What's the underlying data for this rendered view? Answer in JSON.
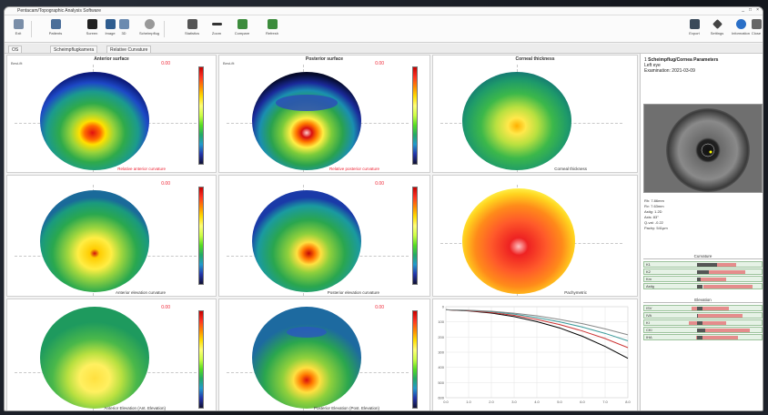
{
  "window": {
    "title": "Pentacam/Topographic Analysis Software",
    "controls": [
      "_",
      "□",
      "×"
    ]
  },
  "toolbar": {
    "items": [
      {
        "label": "Exit",
        "icon": "exit-icon",
        "color": "#7a8ea8"
      },
      {
        "label": "Patients",
        "icon": "patients-icon",
        "color": "#4a6e99"
      },
      {
        "label": "Screen",
        "icon": "monitor-icon",
        "color": "#222222"
      },
      {
        "label": "Image",
        "icon": "image-icon",
        "color": "#2f5d8f"
      },
      {
        "label": "3D",
        "icon": "cube-icon",
        "color": "#6b8bb0"
      },
      {
        "label": "Scheimpflug",
        "icon": "camera-icon",
        "color": "#999999"
      },
      {
        "label": "Statistics",
        "icon": "chart-icon",
        "color": "#555555"
      },
      {
        "label": "Zoom",
        "icon": "zoom-icon",
        "color": "#333333"
      },
      {
        "label": "Compare",
        "icon": "compare-icon",
        "color": "#3c8c3c"
      },
      {
        "label": "Refresh",
        "icon": "refresh-icon",
        "color": "#3c8c3c"
      },
      {
        "label": "Export",
        "icon": "printer-icon",
        "color": "#3a4a5a"
      },
      {
        "label": "Settings",
        "icon": "wrench-icon",
        "color": "#444444"
      },
      {
        "label": "Information",
        "icon": "info-icon",
        "color": "#2a6fc7"
      },
      {
        "label": "Close",
        "icon": "close-icon",
        "color": "#666666"
      }
    ]
  },
  "tabs": [
    "OS",
    "Scheimpflugkamera",
    "Relative Curvature"
  ],
  "maps": [
    {
      "title": "Anterior surface",
      "number": "0.00",
      "side": "Best-fit",
      "label": "Relative anterior curvature",
      "label_red": true,
      "theme": "anterior"
    },
    {
      "title": "Posterior surface",
      "number": "0.00",
      "side": "Best-fit",
      "label": "Relative posterior curvature",
      "label_red": true,
      "theme": "posterior"
    },
    {
      "title": "Corneal thickness",
      "number": "",
      "side": "",
      "label": "Corneal thickness",
      "label_red": false,
      "theme": "thickness"
    },
    {
      "title": "",
      "number": "0.00",
      "side": "",
      "label": "Anterior elevation curvature",
      "label_red": false,
      "theme": "ant2"
    },
    {
      "title": "",
      "number": "0.00",
      "side": "",
      "label": "Posterior elevation curvature",
      "label_red": false,
      "theme": "post2"
    },
    {
      "title": "",
      "number": "",
      "side": "",
      "label": "Pachymetric",
      "label_red": false,
      "theme": "pachy"
    },
    {
      "title": "",
      "number": "0.00",
      "side": "",
      "label": "Anterior Elevation (Ant. Elevation)",
      "label_red": false,
      "theme": "ant3"
    },
    {
      "title": "",
      "number": "0.00",
      "side": "",
      "label": "Posterior Elevation (Post. Elevation)",
      "label_red": false,
      "theme": "post3"
    }
  ],
  "patient": {
    "id": "1",
    "name": "Scheimpflug/Cornea Parameters",
    "line2": "Left eye",
    "line3": "Examination: 2021-03-09"
  },
  "keratometry": [
    "Rh: 7.86mm",
    "Rv: 7.63mm",
    "Astig: 1.2D",
    "Axis: 83°",
    "Q-val: -0.22",
    "Pachy: 541µm"
  ],
  "section_titles": [
    "Curvature",
    "Elevation"
  ],
  "bars_top": [
    {
      "text": "K1",
      "fill": 0.62,
      "peak": 0.78
    },
    {
      "text": "K2",
      "fill": 0.55,
      "peak": 0.86
    },
    {
      "text": "Km",
      "fill": 0.48,
      "peak": 0.7
    },
    {
      "text": "Astig",
      "fill": 0.5,
      "peak": 0.92
    }
  ],
  "bars_bottom": [
    {
      "text": "ISV",
      "fill": 0.4,
      "peak": 0.72
    },
    {
      "text": "IVA",
      "fill": 0.46,
      "peak": 0.84
    },
    {
      "text": "KI",
      "fill": 0.38,
      "peak": 0.7
    },
    {
      "text": "CKI",
      "fill": 0.52,
      "peak": 0.9
    },
    {
      "text": "IHA",
      "fill": 0.44,
      "peak": 0.8
    }
  ],
  "chart_data": {
    "type": "line",
    "title": "",
    "xlabel": "",
    "ylabel": "",
    "x": [
      0,
      1,
      2,
      3,
      4,
      5,
      6,
      7,
      8
    ],
    "xticks": [
      "0.0",
      "1.0",
      "2.0",
      "3.0",
      "4.0",
      "5.0",
      "6.0",
      "7.0",
      "8.0"
    ],
    "yticks": [
      "0",
      "100",
      "200",
      "300",
      "400",
      "500",
      "600"
    ],
    "series": [
      {
        "color": "#000000",
        "values": [
          20,
          28,
          42,
          65,
          98,
          140,
          195,
          262,
          340
        ]
      },
      {
        "color": "#cc3333",
        "values": [
          20,
          26,
          38,
          57,
          84,
          118,
          160,
          210,
          270
        ]
      },
      {
        "color": "#3a9a9a",
        "values": [
          20,
          24,
          33,
          49,
          72,
          100,
          134,
          176,
          225
        ]
      },
      {
        "color": "#888888",
        "values": [
          20,
          23,
          30,
          43,
          60,
          84,
          112,
          146,
          185
        ]
      }
    ],
    "ylim": [
      0,
      600
    ]
  }
}
